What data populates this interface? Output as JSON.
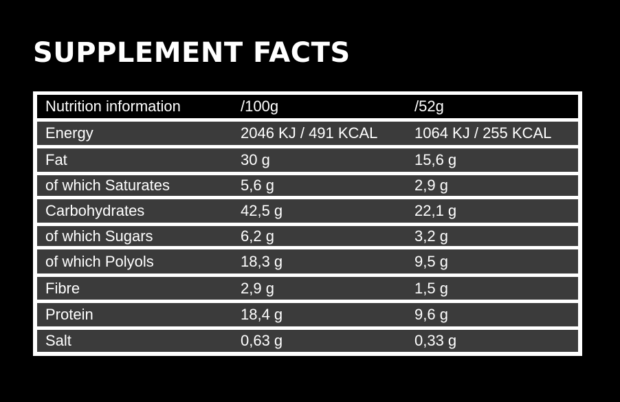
{
  "header": {
    "title": "SUPPLEMENT FACTS"
  },
  "table": {
    "columns": [
      "Nutrition information",
      "/100g",
      "/52g"
    ],
    "rows": [
      [
        "Energy",
        "2046 KJ / 491 KCAL",
        "1064 KJ / 255 KCAL"
      ],
      [
        "Fat",
        "30 g",
        "15,6 g"
      ],
      [
        "of which Saturates",
        "5,6 g",
        "2,9 g"
      ],
      [
        "Carbohydrates",
        "42,5 g",
        "22,1 g"
      ],
      [
        "of which Sugars",
        "6,2 g",
        "3,2 g"
      ],
      [
        "of which Polyols",
        "18,3 g",
        "9,5 g"
      ],
      [
        "Fibre",
        "2,9 g",
        "1,5 g"
      ],
      [
        "Protein",
        "18,4 g",
        "9,6 g"
      ],
      [
        "Salt",
        "0,63 g",
        "0,33 g"
      ]
    ]
  }
}
